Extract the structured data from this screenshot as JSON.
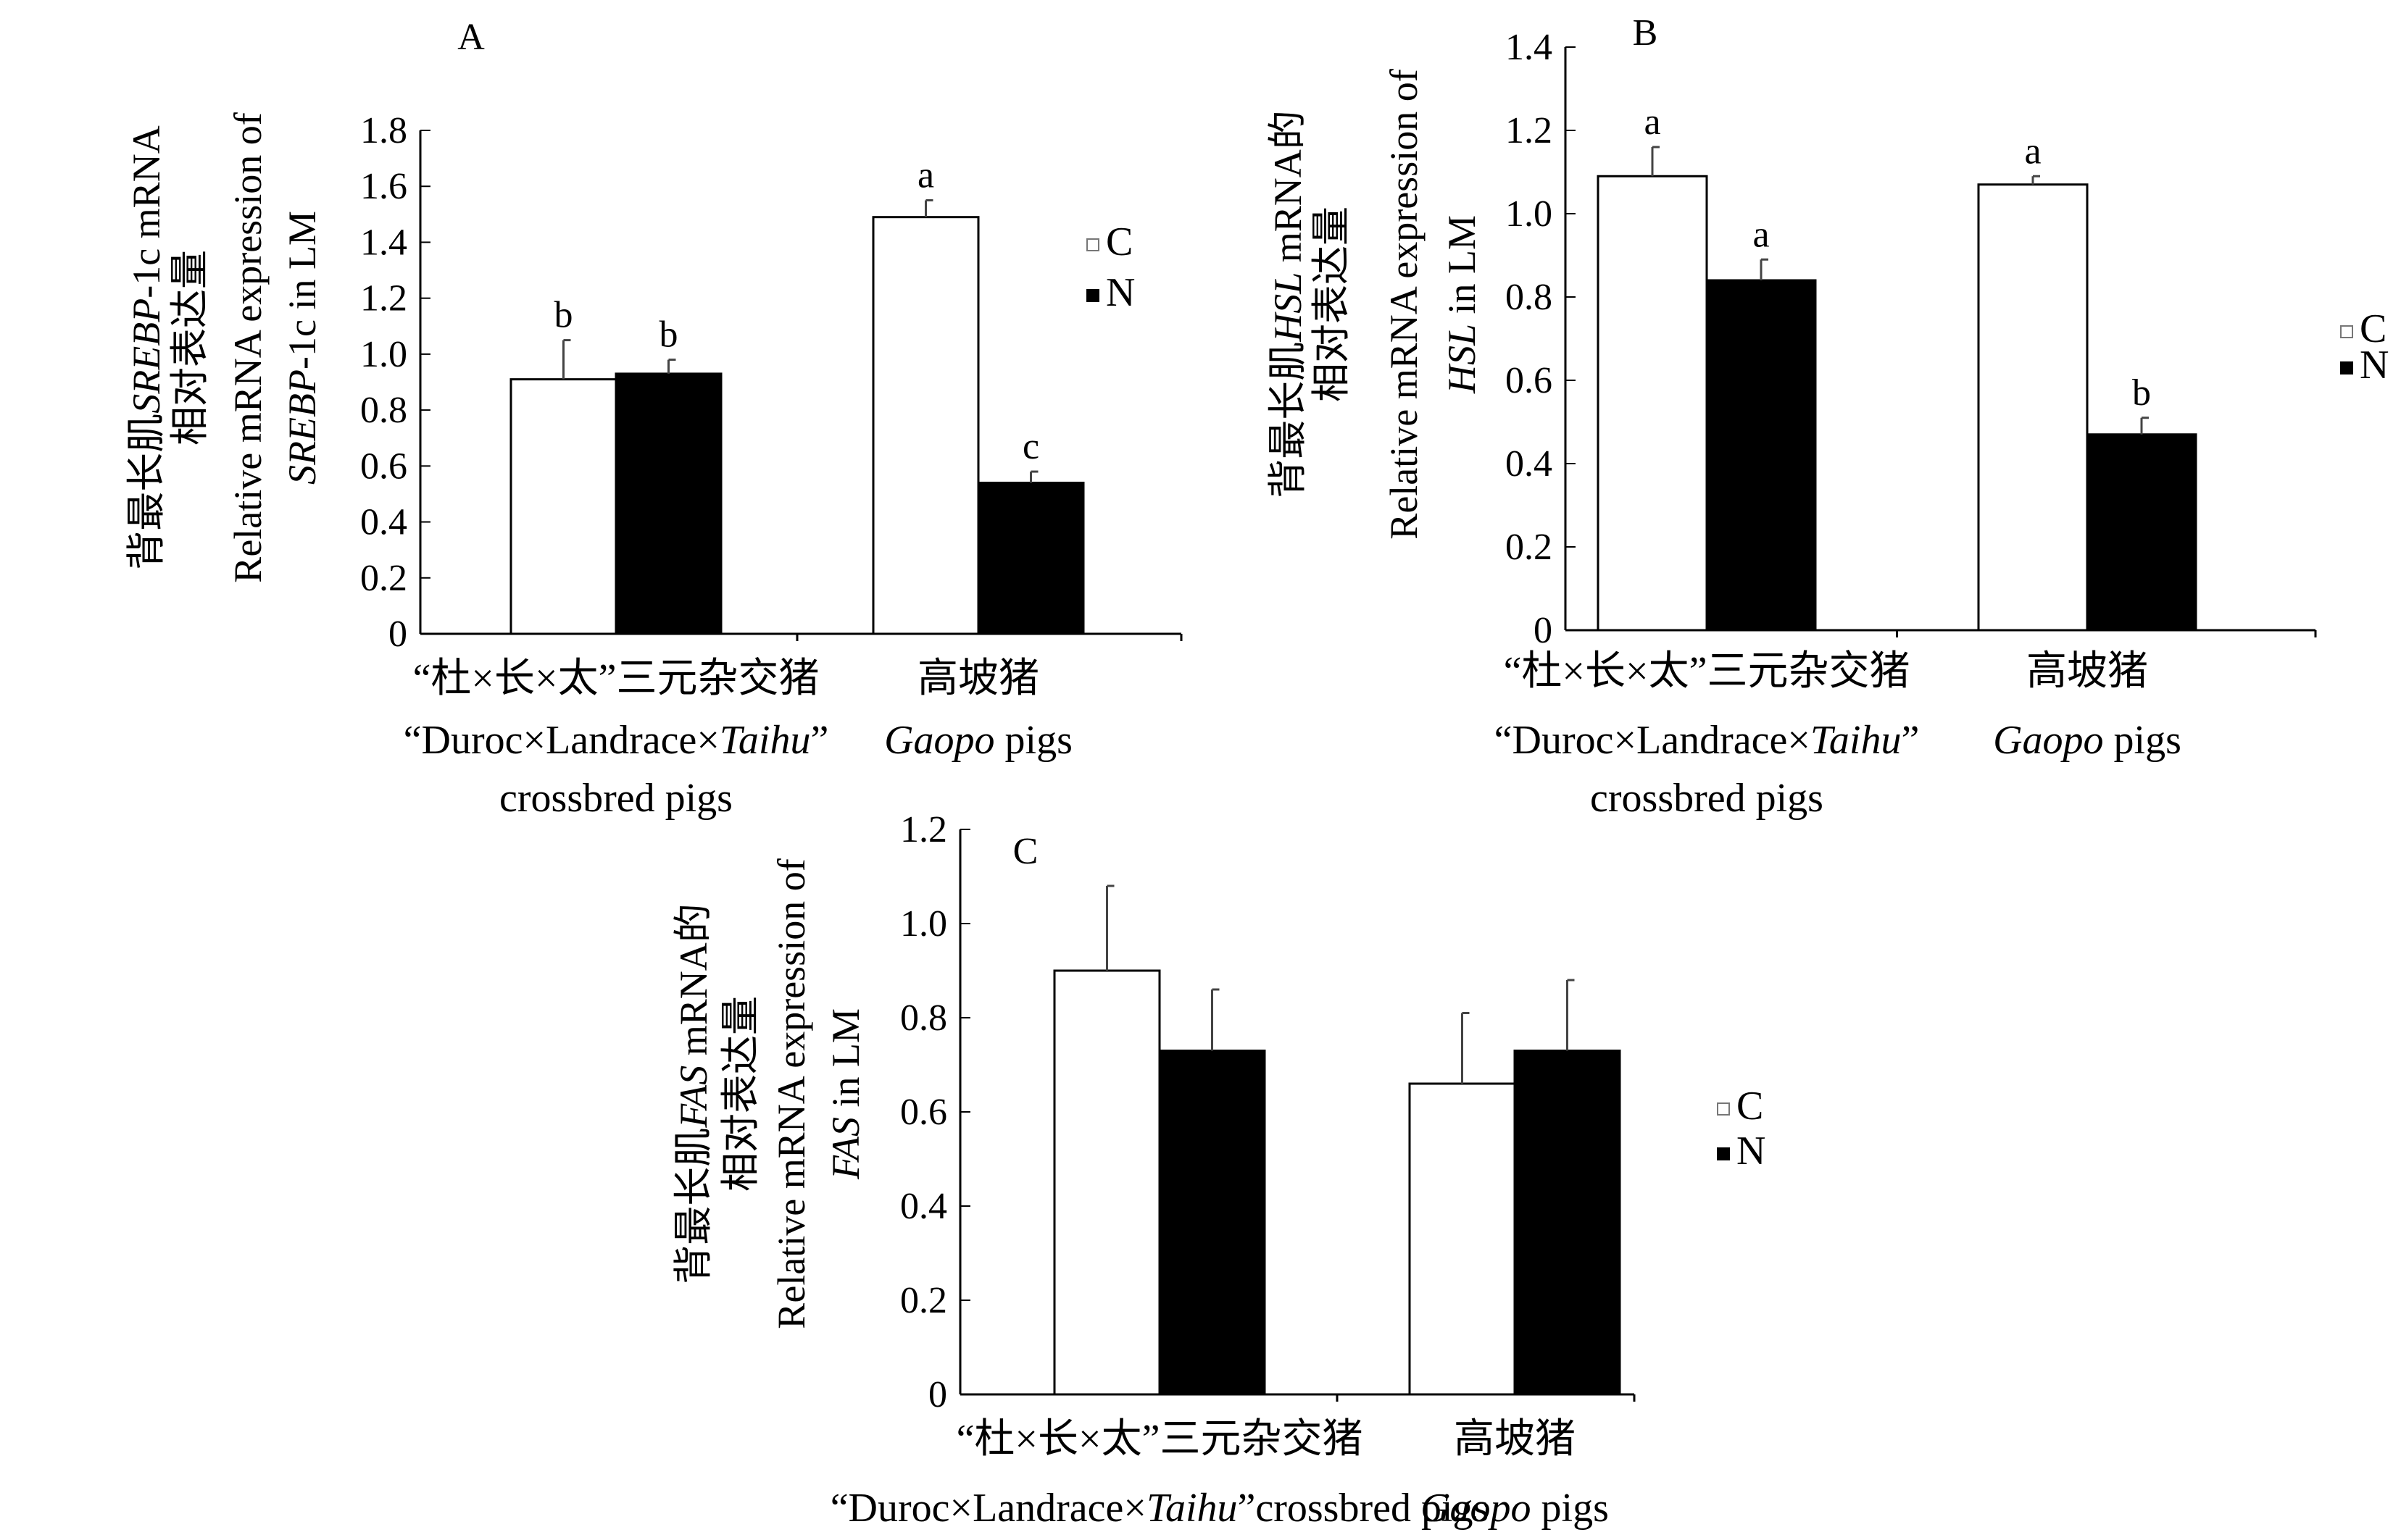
{
  "chart_data": [
    {
      "type": "bar",
      "panel_label": "A",
      "ylabel_lines": [
        [
          {
            "t": "背最长肌",
            "i": false
          },
          {
            "t": "SREBP",
            "i": true
          },
          {
            "t": "-1c mRNA",
            "i": false
          }
        ],
        [
          {
            "t": "相对表达量",
            "i": false
          }
        ],
        [
          {
            "t": "Relative mRNA expression of",
            "i": false
          }
        ],
        [
          {
            "t": "SREBP",
            "i": true
          },
          {
            "t": "-1c in LM",
            "i": false
          }
        ]
      ],
      "ylim": [
        0,
        1.8
      ],
      "yticks": [
        "0",
        "0.2",
        "0.4",
        "0.6",
        "0.8",
        "1.0",
        "1.2",
        "1.4",
        "1.6",
        "1.8"
      ],
      "categories": [
        {
          "line1": "“杜×长×太”三元杂交猪",
          "line2": [
            {
              "t": "“Duroc×Landrace×",
              "i": false
            },
            {
              "t": "Taihu",
              "i": true
            },
            {
              "t": "”",
              "i": false
            }
          ],
          "line3": "crossbred pigs"
        },
        {
          "line1": "高坡猪",
          "line2": [
            {
              "t": "Gaopo",
              "i": true
            },
            {
              "t": " pigs",
              "i": false
            }
          ],
          "line3": ""
        }
      ],
      "series": [
        {
          "name": "C",
          "color": "#ffffff",
          "values": [
            0.91,
            1.49
          ],
          "errors": [
            0.14,
            0.06
          ],
          "letters": [
            "b",
            "a"
          ]
        },
        {
          "name": "N",
          "color": "#000000",
          "values": [
            0.93,
            0.54
          ],
          "errors": [
            0.05,
            0.04
          ],
          "letters": [
            "b",
            "c"
          ]
        }
      ],
      "legend": "right"
    },
    {
      "type": "bar",
      "panel_label": "B",
      "ylabel_lines": [
        [
          {
            "t": "背最长肌",
            "i": false
          },
          {
            "t": "HSL",
            "i": true
          },
          {
            "t": " mRNA的",
            "i": false
          }
        ],
        [
          {
            "t": "相对表达量",
            "i": false
          }
        ],
        [
          {
            "t": "Relative mRNA expression of",
            "i": false
          }
        ],
        [
          {
            "t": "HSL",
            "i": true
          },
          {
            "t": " in LM",
            "i": false
          }
        ]
      ],
      "ylim": [
        0,
        1.4
      ],
      "yticks": [
        "0",
        "0.2",
        "0.4",
        "0.6",
        "0.8",
        "1.0",
        "1.2",
        "1.4"
      ],
      "categories": [
        {
          "line1": "“杜×长×太”三元杂交猪",
          "line2": [
            {
              "t": "“Duroc×Landrace×",
              "i": false
            },
            {
              "t": "Taihu",
              "i": true
            },
            {
              "t": "”",
              "i": false
            }
          ],
          "line3": "crossbred pigs"
        },
        {
          "line1": "高坡猪",
          "line2": [
            {
              "t": "Gaopo",
              "i": true
            },
            {
              "t": " pigs",
              "i": false
            }
          ],
          "line3": ""
        }
      ],
      "series": [
        {
          "name": "C",
          "color": "#ffffff",
          "values": [
            1.09,
            1.07
          ],
          "errors": [
            0.07,
            0.02
          ],
          "letters": [
            "a",
            "a"
          ]
        },
        {
          "name": "N",
          "color": "#000000",
          "values": [
            0.84,
            0.47
          ],
          "errors": [
            0.05,
            0.04
          ],
          "letters": [
            "a",
            "b"
          ]
        }
      ],
      "legend": "right"
    },
    {
      "type": "bar",
      "panel_label": "C",
      "ylabel_lines": [
        [
          {
            "t": "背最长肌",
            "i": false
          },
          {
            "t": "FAS",
            "i": true
          },
          {
            "t": " mRNA的",
            "i": false
          }
        ],
        [
          {
            "t": "相对表达量",
            "i": false
          }
        ],
        [
          {
            "t": "Relative mRNA expression of",
            "i": false
          }
        ],
        [
          {
            "t": "FAS",
            "i": true
          },
          {
            "t": " in LM",
            "i": false
          }
        ]
      ],
      "ylim": [
        0,
        1.2
      ],
      "yticks": [
        "0",
        "0.2",
        "0.4",
        "0.6",
        "0.8",
        "1.0",
        "1.2"
      ],
      "categories": [
        {
          "line1": "“杜×长×太”三元杂交猪",
          "line2": [
            {
              "t": "“Duroc×Landrace×",
              "i": false
            },
            {
              "t": "Taihu",
              "i": true
            },
            {
              "t": "”crossbred pigs",
              "i": false
            }
          ],
          "line3": ""
        },
        {
          "line1": "高坡猪",
          "line2": [
            {
              "t": "Gaopo",
              "i": true
            },
            {
              "t": " pigs",
              "i": false
            }
          ],
          "line3": ""
        }
      ],
      "series": [
        {
          "name": "C",
          "color": "#ffffff",
          "values": [
            0.9,
            0.66
          ],
          "errors": [
            0.18,
            0.15
          ],
          "letters": [
            "",
            ""
          ]
        },
        {
          "name": "N",
          "color": "#000000",
          "values": [
            0.73,
            0.73
          ],
          "errors": [
            0.13,
            0.15
          ],
          "letters": [
            "",
            ""
          ]
        }
      ],
      "legend": "right"
    }
  ]
}
